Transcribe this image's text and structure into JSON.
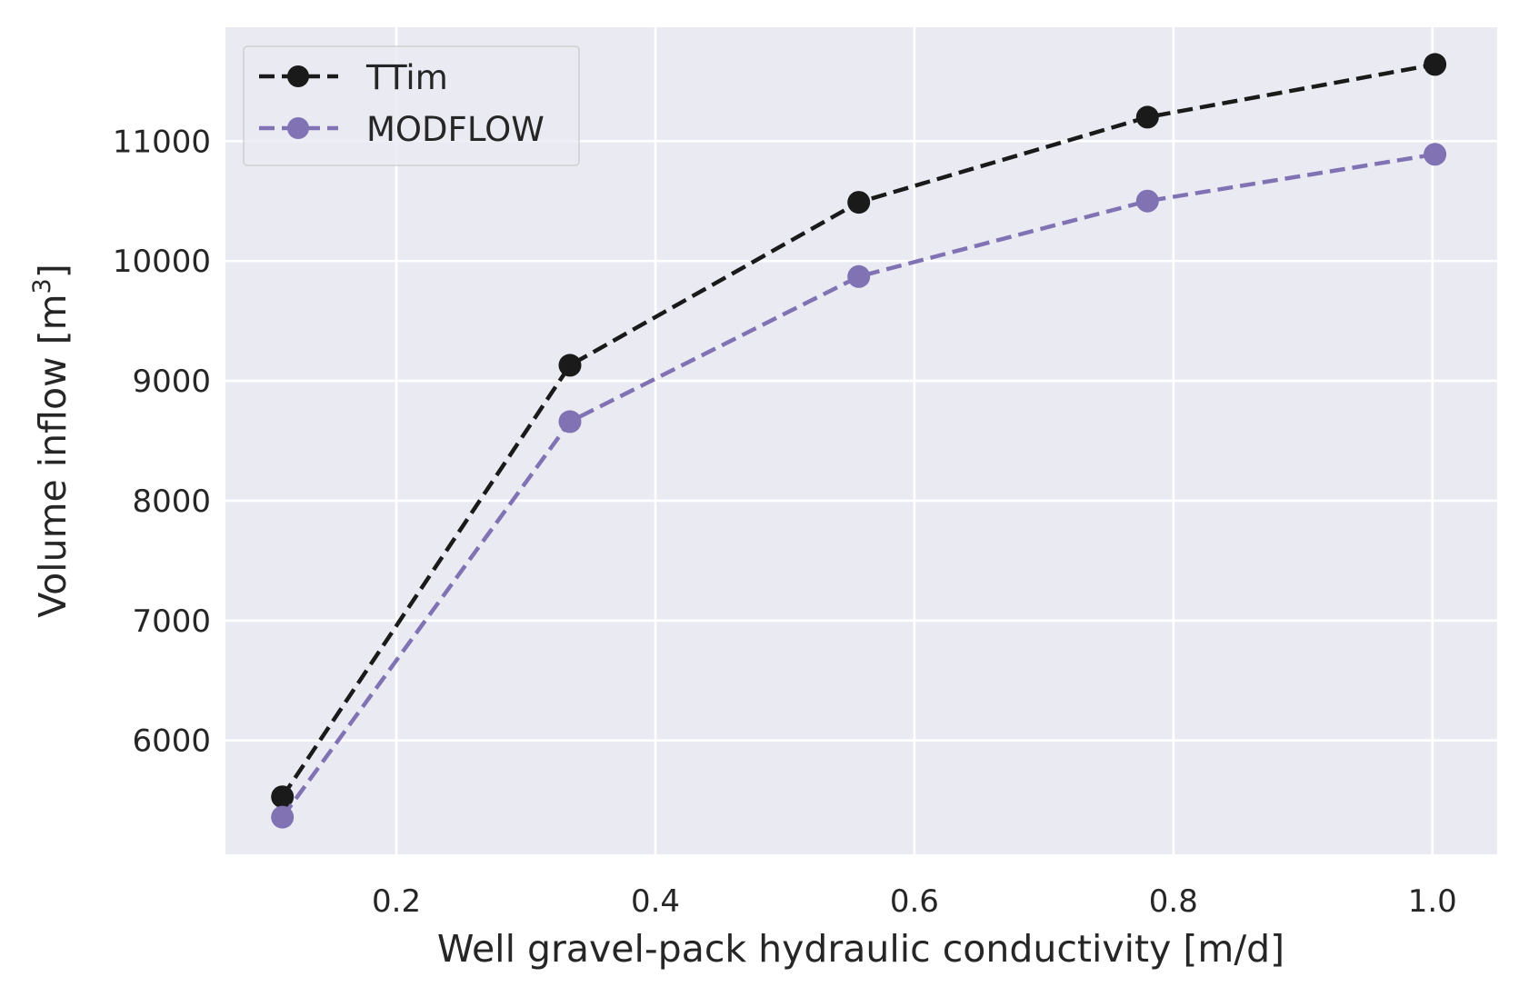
{
  "chart_data": {
    "type": "line",
    "title": "",
    "xlabel": "Well gravel-pack hydraulic conductivity [m/d]",
    "ylabel_main": "Volume inflow [m",
    "ylabel_sup": "3",
    "ylabel_close": "]",
    "xlim": [
      0.068,
      1.05
    ],
    "ylim": [
      5050,
      11950
    ],
    "xticks": [
      {
        "value": 0.2,
        "label": "0.2"
      },
      {
        "value": 0.4,
        "label": "0.4"
      },
      {
        "value": 0.6,
        "label": "0.6"
      },
      {
        "value": 0.8,
        "label": "0.8"
      },
      {
        "value": 1.0,
        "label": "1.0"
      }
    ],
    "yticks": [
      {
        "value": 6000,
        "label": "6000"
      },
      {
        "value": 7000,
        "label": "7000"
      },
      {
        "value": 8000,
        "label": "8000"
      },
      {
        "value": 9000,
        "label": "9000"
      },
      {
        "value": 10000,
        "label": "10000"
      },
      {
        "value": 11000,
        "label": "11000"
      }
    ],
    "x": [
      0.112,
      0.334,
      0.557,
      0.78,
      1.002
    ],
    "series": [
      {
        "name": "TTim",
        "color": "#1a1a1a",
        "values": [
          5530,
          9130,
          10490,
          11200,
          11640
        ]
      },
      {
        "name": "MODFLOW",
        "color": "#8172b3",
        "values": [
          5360,
          8660,
          9870,
          10500,
          10890
        ]
      }
    ],
    "grid": true,
    "legend_position": "top-left",
    "line_style": "dashed",
    "marker": "circle",
    "background_color": "#eaeaf2",
    "grid_color": "#ffffff"
  }
}
